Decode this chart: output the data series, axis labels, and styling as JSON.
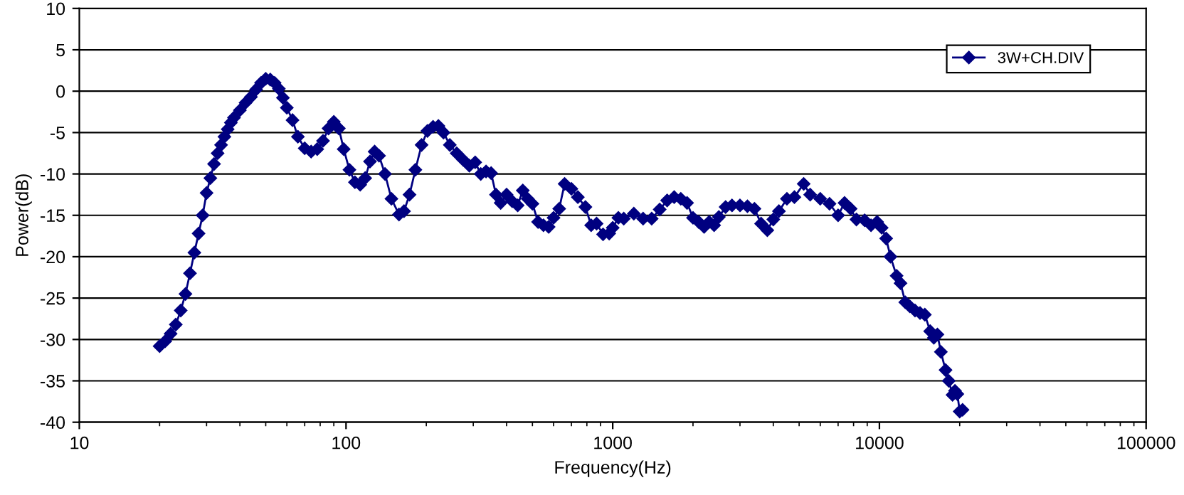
{
  "chart_data": {
    "type": "line",
    "xlabel": "Frequency(Hz)",
    "ylabel": "Power(dB)",
    "log": "x",
    "xlim": [
      10,
      100000
    ],
    "xticks": [
      10,
      100,
      1000,
      10000,
      100000
    ],
    "ylim": [
      -40,
      10
    ],
    "yticks": [
      -40,
      -35,
      -30,
      -25,
      -20,
      -15,
      -10,
      -5,
      0,
      5,
      10
    ],
    "grid": "y",
    "legend": "top right",
    "marker": "diamond",
    "line_style": "solid",
    "series": [
      {
        "name": "3W+CH.DIV",
        "color": "#000080",
        "x": [
          20,
          21,
          22,
          23,
          24,
          25,
          26,
          27,
          28,
          29,
          30,
          31,
          32,
          33,
          34,
          35,
          36,
          37,
          38,
          40,
          42,
          44,
          46,
          48,
          50,
          52,
          54,
          56,
          58,
          60,
          63,
          66,
          70,
          74,
          78,
          82,
          86,
          90,
          94,
          98,
          103,
          108,
          113,
          118,
          123,
          128,
          133,
          140,
          148,
          158,
          165,
          173,
          182,
          192,
          202,
          212,
          222,
          232,
          245,
          260,
          275,
          290,
          305,
          320,
          335,
          350,
          365,
          380,
          400,
          420,
          440,
          460,
          480,
          500,
          525,
          550,
          575,
          600,
          630,
          660,
          700,
          740,
          790,
          830,
          870,
          920,
          970,
          1000,
          1050,
          1100,
          1200,
          1300,
          1400,
          1500,
          1600,
          1700,
          1800,
          1900,
          2000,
          2100,
          2200,
          2300,
          2400,
          2500,
          2650,
          2800,
          3000,
          3200,
          3400,
          3600,
          3800,
          4000,
          4200,
          4500,
          4800,
          5200,
          5500,
          6000,
          6500,
          7000,
          7400,
          7800,
          8200,
          8800,
          9300,
          9800,
          10200,
          10600,
          11000,
          11600,
          12000,
          12500,
          13000,
          13600,
          14200,
          14800,
          15500,
          16000,
          16500,
          17000,
          17700,
          18200,
          18800,
          19200,
          19600,
          20000,
          20500
        ],
        "values": [
          -30.8,
          -30.2,
          -29.3,
          -28.2,
          -26.5,
          -24.5,
          -22,
          -19.5,
          -17.2,
          -15,
          -12.3,
          -10.5,
          -8.8,
          -7.5,
          -6.5,
          -5.5,
          -4.6,
          -3.8,
          -3.2,
          -2.3,
          -1.4,
          -0.7,
          0.2,
          1.0,
          1.5,
          1.4,
          1.0,
          0.3,
          -0.8,
          -2.0,
          -3.5,
          -5.5,
          -6.9,
          -7.3,
          -7.0,
          -6.0,
          -4.5,
          -3.7,
          -4.5,
          -7.0,
          -9.5,
          -11,
          -11.3,
          -10.5,
          -8.5,
          -7.3,
          -7.8,
          -10,
          -13,
          -14.9,
          -14.5,
          -12.5,
          -9.5,
          -6.5,
          -4.8,
          -4.3,
          -4.2,
          -5.0,
          -6.5,
          -7.5,
          -8.3,
          -9.0,
          -8.6,
          -10,
          -9.7,
          -9.9,
          -12.5,
          -13.5,
          -12.5,
          -13.3,
          -13.8,
          -12,
          -13,
          -13.6,
          -15.8,
          -16.2,
          -16.4,
          -15.3,
          -14.2,
          -11.2,
          -11.8,
          -12.8,
          -14,
          -16.2,
          -16.0,
          -17.3,
          -17.2,
          -16.5,
          -15.3,
          -15.4,
          -14.8,
          -15.4,
          -15.4,
          -14.3,
          -13.2,
          -12.8,
          -13.0,
          -13.5,
          -15.3,
          -15.8,
          -16.4,
          -15.8,
          -16.2,
          -15.2,
          -14,
          -13.8,
          -13.8,
          -13.9,
          -14.2,
          -16,
          -16.8,
          -15.5,
          -14.5,
          -13.0,
          -12.8,
          -11.2,
          -12.5,
          -13,
          -13.6,
          -15,
          -13.5,
          -14.2,
          -15.5,
          -15.6,
          -16.2,
          -15.8,
          -16.5,
          -17.8,
          -20,
          -22.3,
          -23.2,
          -25.5,
          -26,
          -26.5,
          -26.8,
          -27,
          -29,
          -29.8,
          -29.4,
          -31.5,
          -33.7,
          -35,
          -36.7,
          -36.2,
          -36.6,
          -38.7,
          -38.5
        ]
      }
    ]
  }
}
